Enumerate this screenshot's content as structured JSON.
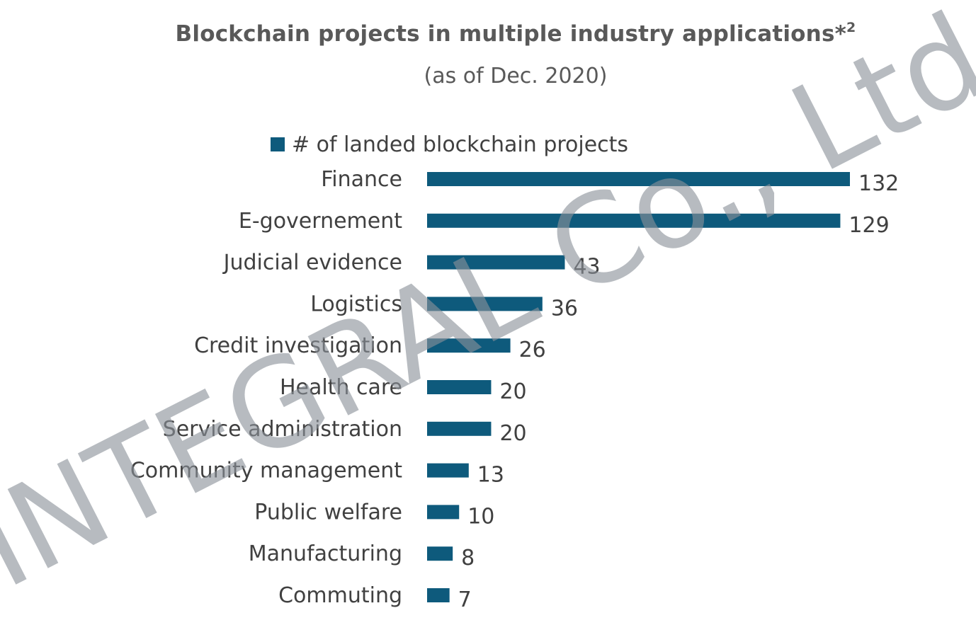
{
  "chart_data": {
    "type": "bar",
    "orientation": "horizontal",
    "title": "Blockchain projects in multiple industry applications*",
    "title_superscript": "2",
    "subtitle": "(as of Dec. 2020)",
    "categories": [
      "Finance",
      "E-governement",
      "Judicial evidence",
      "Logistics",
      "Credit investigation",
      "Health care",
      "Service administration",
      "Community management",
      "Public welfare",
      "Manufacturing",
      "Commuting"
    ],
    "series": [
      {
        "name": "# of landed blockchain projects",
        "values": [
          132,
          129,
          43,
          36,
          26,
          20,
          20,
          13,
          10,
          8,
          7
        ],
        "color": "#0e5a7c"
      }
    ],
    "xlim": [
      0,
      132
    ],
    "data_labels": true,
    "grid": false,
    "legend_position": "top"
  },
  "watermark": {
    "text": "INTEGRAL Co., Ltd"
  }
}
